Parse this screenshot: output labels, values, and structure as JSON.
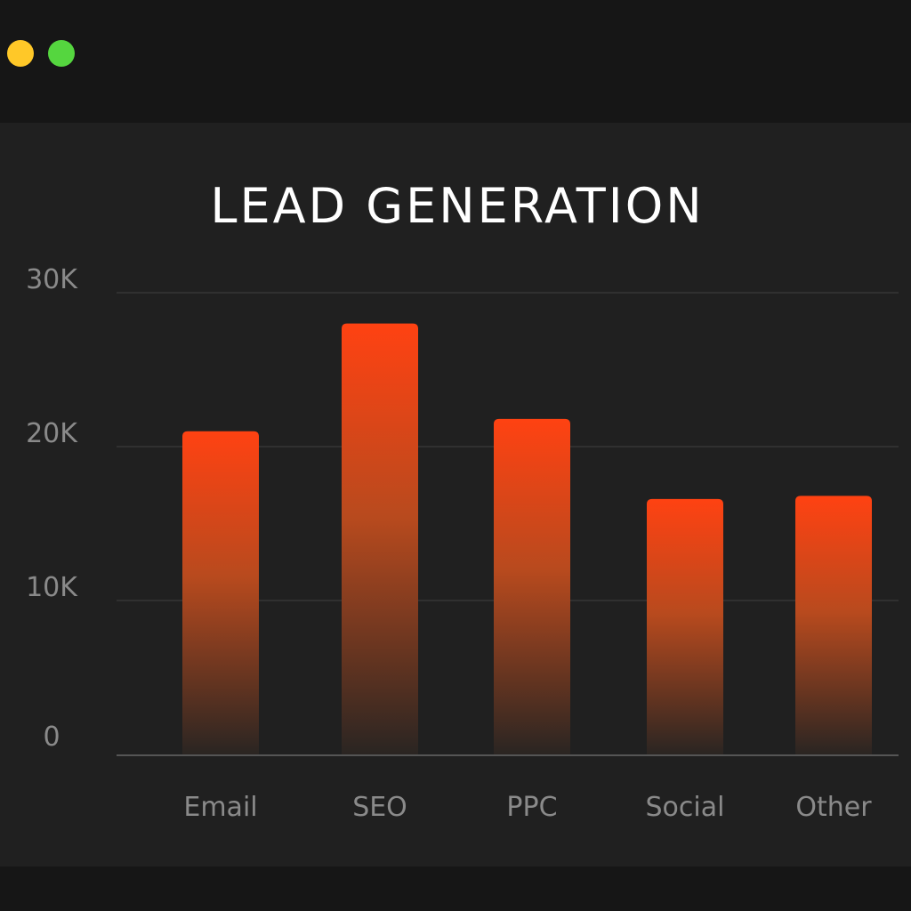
{
  "window": {
    "controls": [
      {
        "name": "minimize",
        "color": "#FFC828"
      },
      {
        "name": "maximize",
        "color": "#55D63F"
      }
    ]
  },
  "colors": {
    "background": "#161616",
    "panel": "#202020",
    "bar_top": "#FF4212",
    "bar_bottom": "#2A2522",
    "grid": "#363636",
    "axis": "#555555",
    "tick_text": "#8A8A8A",
    "title_text": "#FFFFFF"
  },
  "chart_data": {
    "type": "bar",
    "title": "LEAD GENERATION",
    "xlabel": "",
    "ylabel": "",
    "categories": [
      "Email",
      "SEO",
      "PPC",
      "Social",
      "Other"
    ],
    "values": [
      21000,
      28000,
      21800,
      16600,
      16800
    ],
    "ylim": [
      0,
      30000
    ],
    "yticks": [
      0,
      10000,
      20000,
      30000
    ],
    "ytick_labels": [
      "0",
      "10K",
      "20K",
      "30K"
    ],
    "grid": true,
    "legend": "none"
  }
}
